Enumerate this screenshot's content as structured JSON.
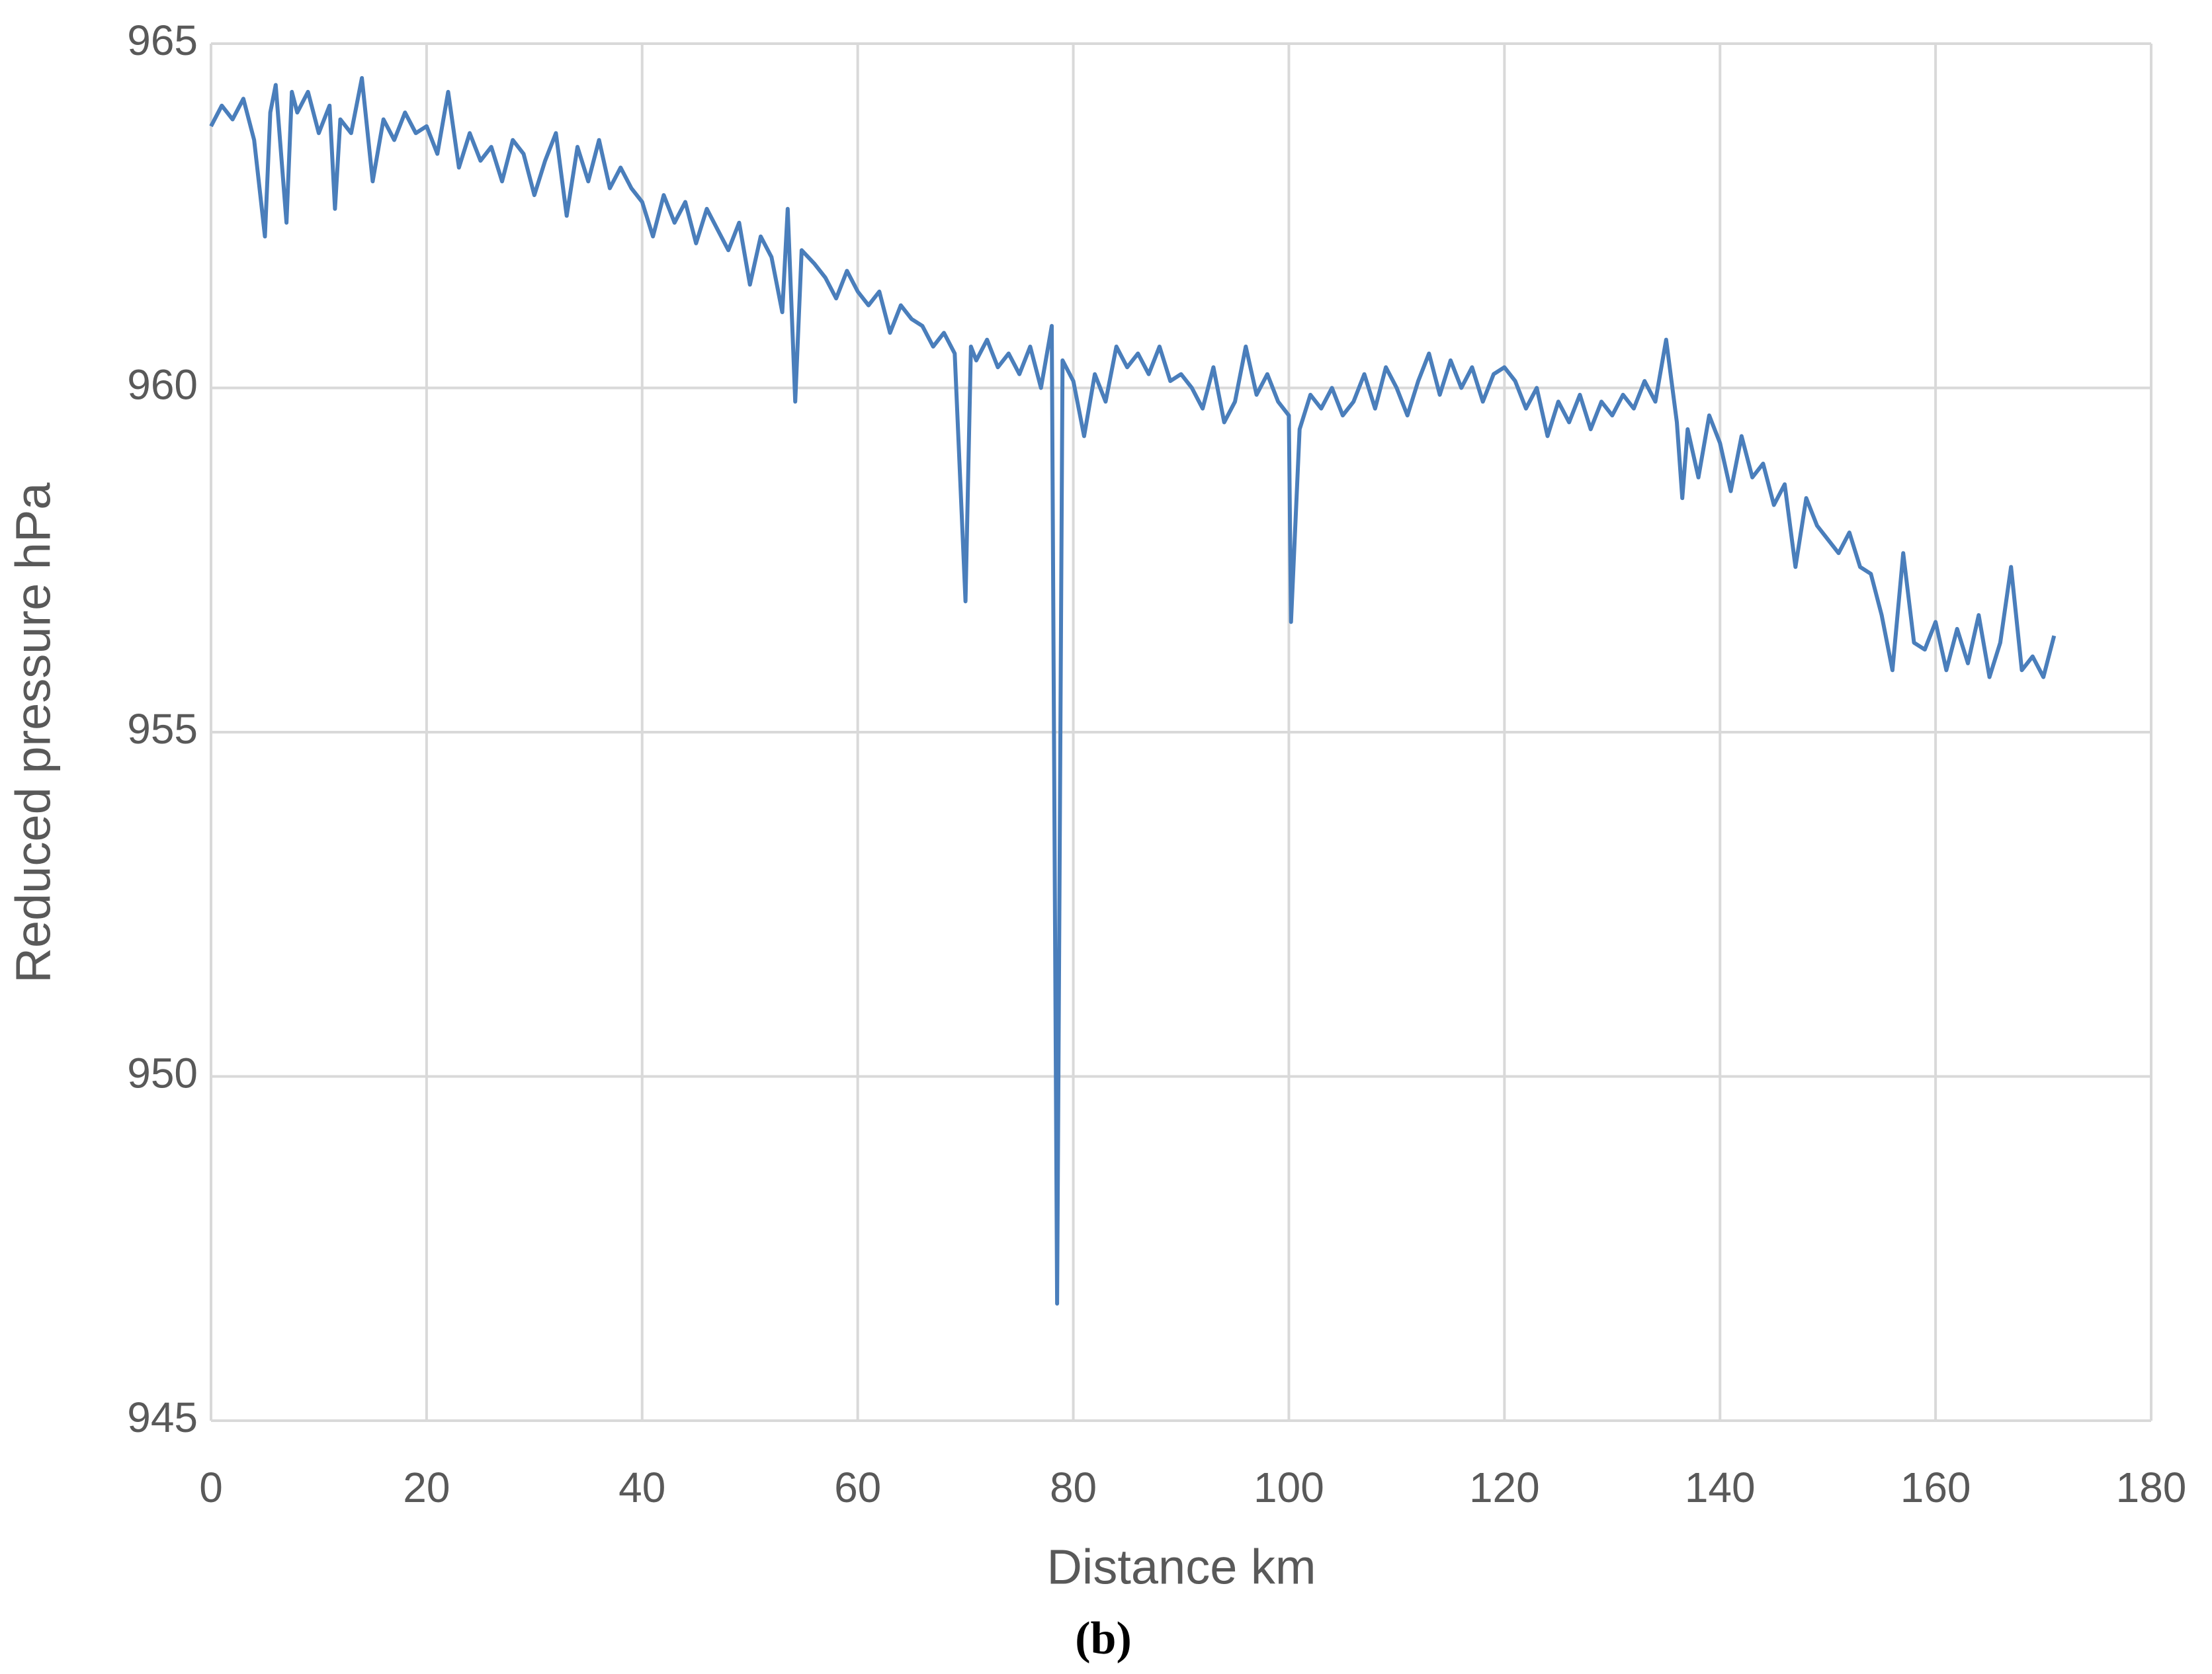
{
  "chart_data": {
    "type": "line",
    "xlabel": "Distance km",
    "ylabel": "Reduced pressure hPa",
    "caption": "(b)",
    "xlim": [
      0,
      180
    ],
    "xticks": [
      0,
      20,
      40,
      60,
      80,
      100,
      120,
      140,
      160,
      180
    ],
    "ylim": [
      945,
      965
    ],
    "yticks": [
      945,
      950,
      955,
      960,
      965
    ],
    "grid": true,
    "x": [
      0,
      1,
      2,
      3,
      4,
      5,
      5.5,
      6,
      7,
      7.5,
      8,
      9,
      10,
      11,
      11.5,
      12,
      13,
      14,
      15,
      16,
      17,
      18,
      19,
      20,
      21,
      22,
      23,
      24,
      25,
      26,
      27,
      28,
      29,
      30,
      31,
      32,
      33,
      34,
      35,
      36,
      37,
      38,
      39,
      40,
      41,
      42,
      43,
      44,
      45,
      46,
      47,
      48,
      49,
      50,
      51,
      52,
      53,
      53.5,
      54.2,
      54.8,
      56,
      57,
      58,
      59,
      60,
      61,
      62,
      63,
      64,
      65,
      66,
      67,
      68,
      69,
      70,
      70.5,
      71,
      72,
      73,
      74,
      75,
      76,
      77,
      78,
      78.5,
      79,
      80,
      81,
      82,
      83,
      84,
      85,
      86,
      87,
      88,
      89,
      90,
      91,
      92,
      93,
      94,
      95,
      96,
      97,
      98,
      99,
      100,
      100.2,
      101,
      102,
      103,
      104,
      105,
      106,
      107,
      108,
      109,
      110,
      111,
      112,
      113,
      114,
      115,
      116,
      117,
      118,
      119,
      120,
      121,
      122,
      123,
      124,
      125,
      126,
      127,
      128,
      129,
      130,
      131,
      132,
      133,
      134,
      135,
      136,
      136.5,
      137,
      138,
      139,
      140,
      141,
      142,
      143,
      144,
      145,
      146,
      147,
      148,
      149,
      150,
      151,
      152,
      153,
      154,
      155,
      156,
      157,
      158,
      159,
      160,
      161,
      162,
      163,
      164,
      165,
      166,
      167,
      168,
      169,
      170,
      171
    ],
    "series": [
      {
        "name": "Reduced pressure",
        "color": "#4a7ebb",
        "values": [
          963.8,
          964.1,
          963.9,
          964.2,
          963.6,
          962.2,
          964.0,
          964.4,
          962.4,
          964.3,
          964.0,
          964.3,
          963.7,
          964.1,
          962.6,
          963.9,
          963.7,
          964.5,
          963.0,
          963.9,
          963.6,
          964.0,
          963.7,
          963.8,
          963.4,
          964.3,
          963.2,
          963.7,
          963.3,
          963.5,
          963.0,
          963.6,
          963.4,
          962.8,
          963.3,
          963.7,
          962.5,
          963.5,
          963.0,
          963.6,
          962.9,
          963.2,
          962.9,
          962.7,
          962.2,
          962.8,
          962.4,
          962.7,
          962.1,
          962.6,
          962.3,
          962.0,
          962.4,
          961.5,
          962.2,
          961.9,
          961.1,
          962.6,
          959.8,
          962.0,
          961.8,
          961.6,
          961.3,
          961.7,
          961.4,
          961.2,
          961.4,
          960.8,
          961.2,
          961.0,
          960.9,
          960.6,
          960.8,
          960.5,
          956.9,
          960.6,
          960.4,
          960.7,
          960.3,
          960.5,
          960.2,
          960.6,
          960.0,
          960.9,
          946.7,
          960.4,
          960.1,
          959.3,
          960.2,
          959.8,
          960.6,
          960.3,
          960.5,
          960.2,
          960.6,
          960.1,
          960.2,
          960.0,
          959.7,
          960.3,
          959.5,
          959.8,
          960.6,
          959.9,
          960.2,
          959.8,
          959.6,
          956.6,
          959.4,
          959.9,
          959.7,
          960.0,
          959.6,
          959.8,
          960.2,
          959.7,
          960.3,
          960.0,
          959.6,
          960.1,
          960.5,
          959.9,
          960.4,
          960.0,
          960.3,
          959.8,
          960.2,
          960.3,
          960.1,
          959.7,
          960.0,
          959.3,
          959.8,
          959.5,
          959.9,
          959.4,
          959.8,
          959.6,
          959.9,
          959.7,
          960.1,
          959.8,
          960.7,
          959.5,
          958.4,
          959.4,
          958.7,
          959.6,
          959.2,
          958.5,
          959.3,
          958.7,
          958.9,
          958.3,
          958.6,
          957.4,
          958.4,
          958.0,
          957.8,
          957.6,
          957.9,
          957.4,
          957.3,
          956.7,
          955.9,
          957.6,
          956.3,
          956.2,
          956.6,
          955.9,
          956.5,
          956.0,
          956.7,
          955.8,
          956.3,
          957.4,
          955.9,
          956.1,
          955.8,
          956.4
        ]
      }
    ]
  }
}
